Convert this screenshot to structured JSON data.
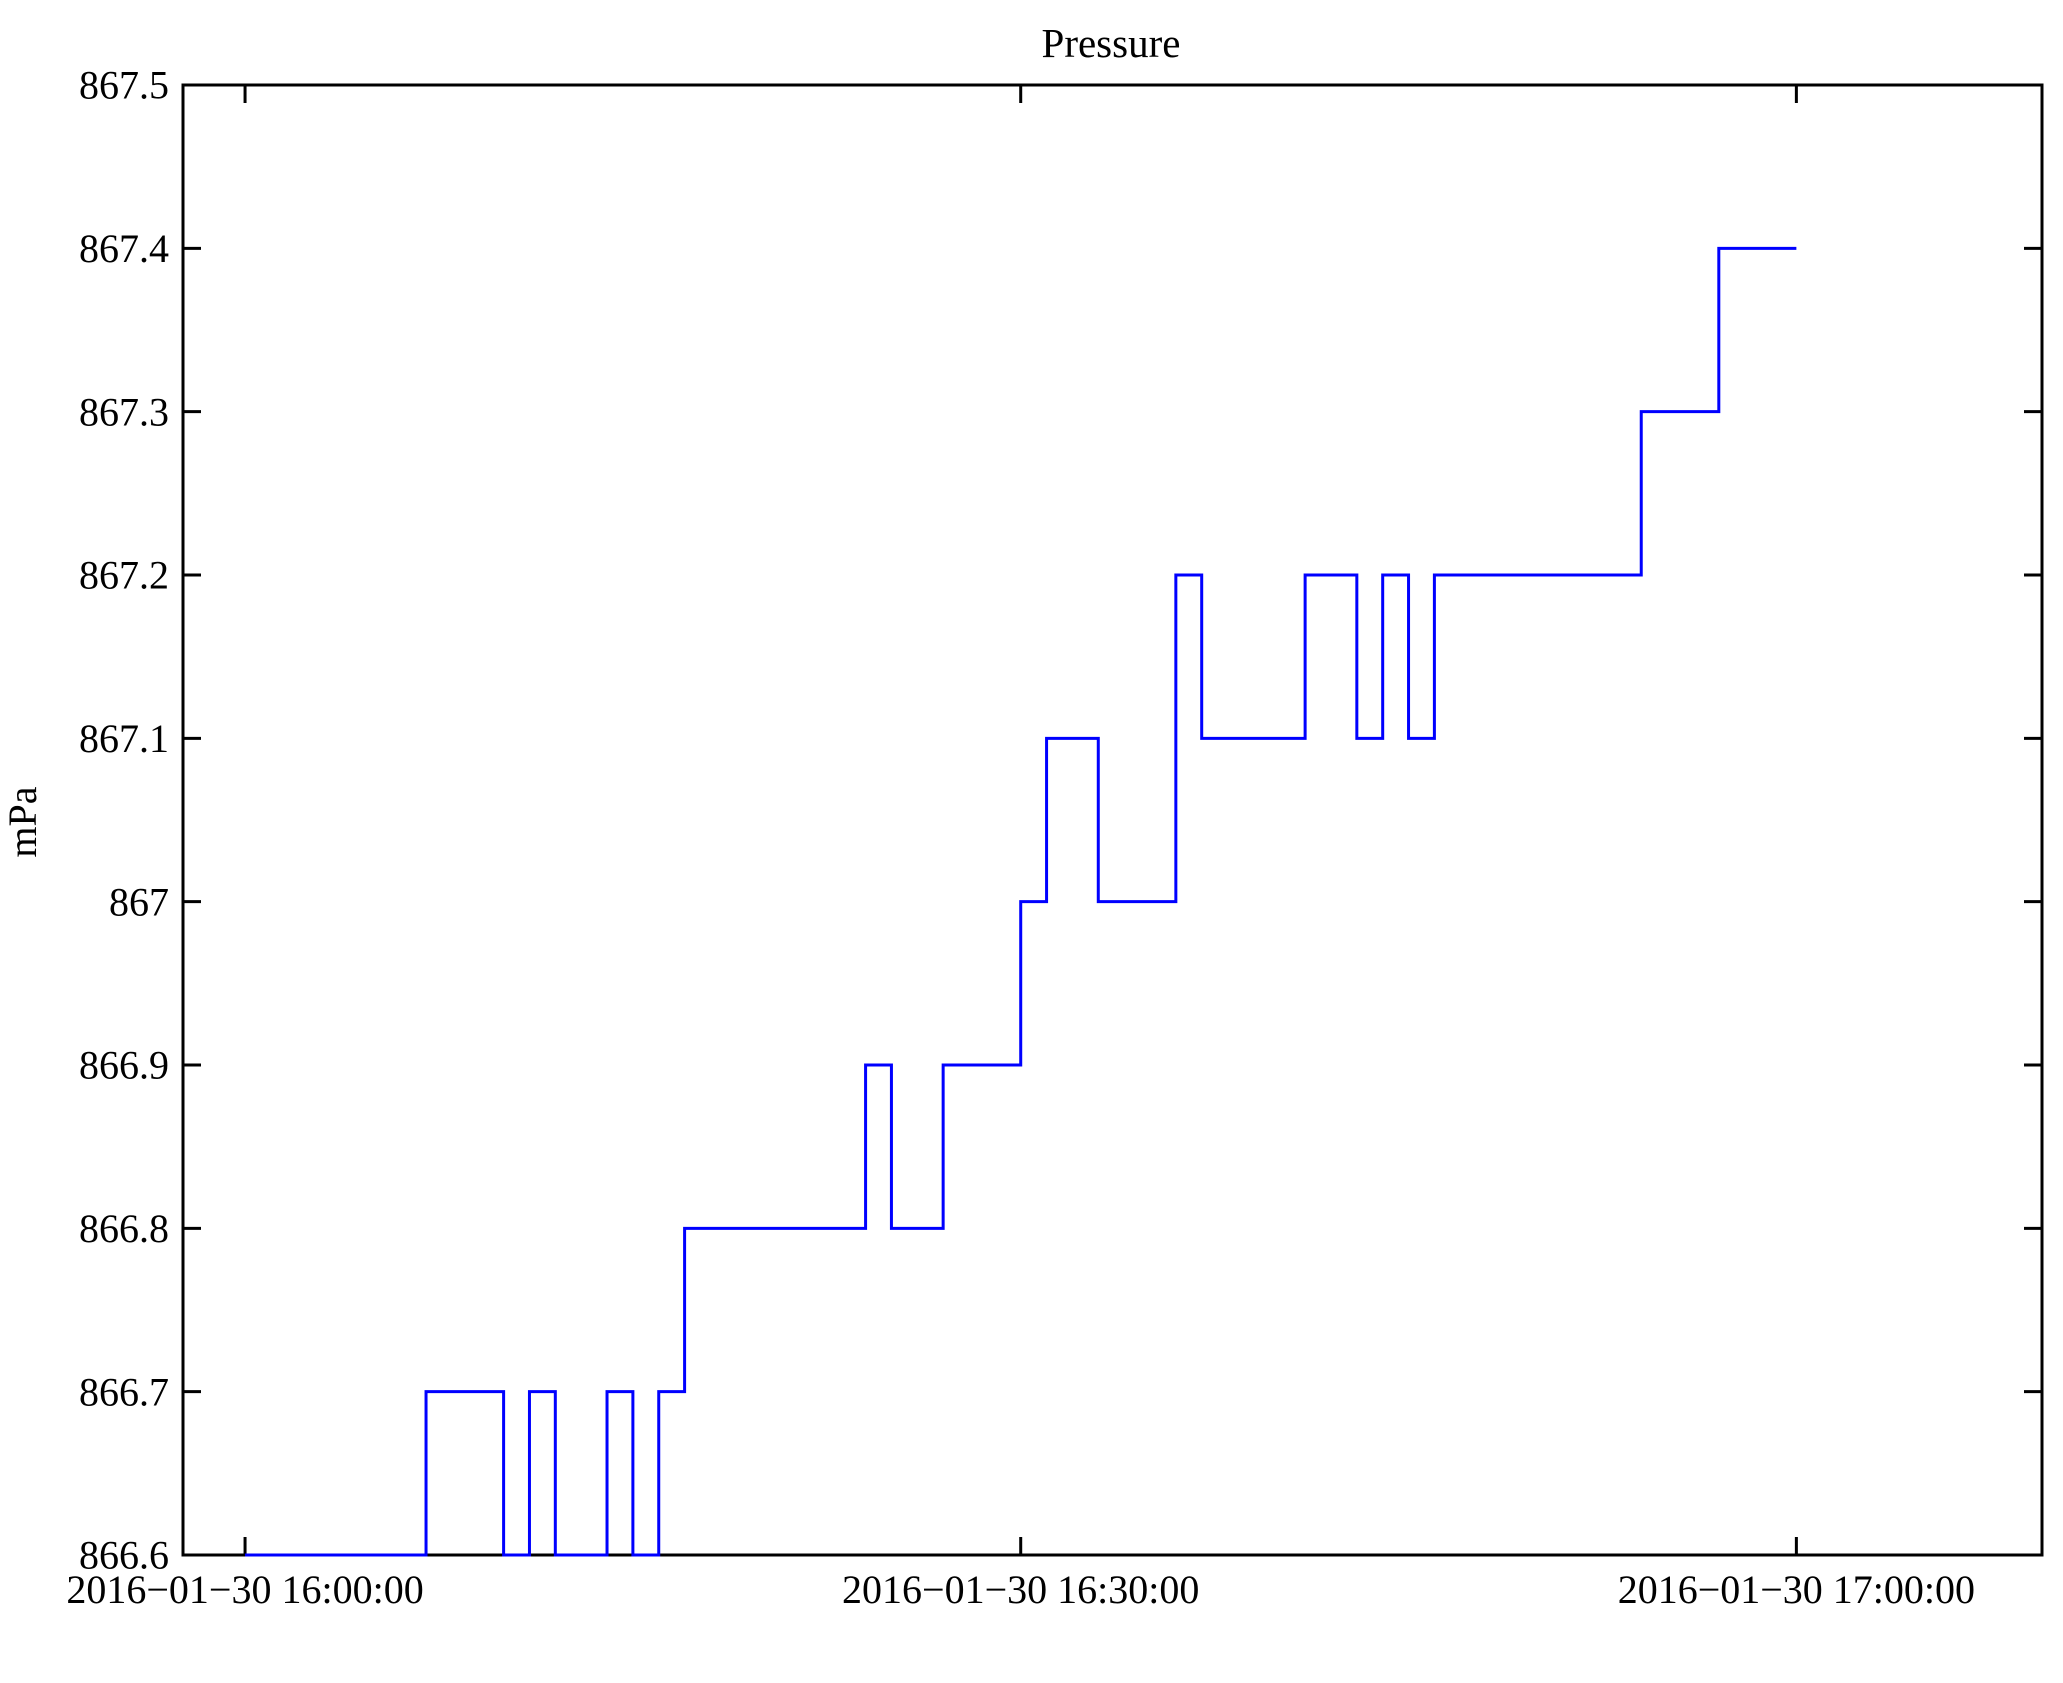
{
  "chart_data": {
    "type": "line",
    "step_mode": "post",
    "title": "Pressure",
    "xlabel": "",
    "ylabel": "mPa",
    "line_color": "#0000ff",
    "axis_color": "#000000",
    "background_color": "#ffffff",
    "grid": false,
    "legend": "none",
    "ylim": [
      866.6,
      867.5
    ],
    "y_ticks": [
      866.6,
      866.7,
      866.8,
      866.9,
      867.0,
      867.1,
      867.2,
      867.3,
      867.4,
      867.5
    ],
    "y_tick_labels": [
      "866.6",
      "866.7",
      "866.8",
      "866.9",
      "867",
      "867.1",
      "867.2",
      "867.3",
      "867.4",
      "867.5"
    ],
    "x_ticks": [
      {
        "minutes_from_start": 0,
        "label": "2016−01−30 16:00:00"
      },
      {
        "minutes_from_start": 30,
        "label": "2016−01−30 16:30:00"
      },
      {
        "minutes_from_start": 60,
        "label": "2016−01−30 17:00:00"
      }
    ],
    "x_start_time": "16:00:00",
    "x_end_time": "17:00:00",
    "xlim_minutes_from_start": [
      -2.4,
      69.5
    ],
    "series": [
      {
        "name": "Pressure",
        "points": [
          [
            "16:00:00",
            866.6
          ],
          [
            "16:07:00",
            866.7
          ],
          [
            "16:10:00",
            866.6
          ],
          [
            "16:11:00",
            866.7
          ],
          [
            "16:12:00",
            866.6
          ],
          [
            "16:14:00",
            866.7
          ],
          [
            "16:15:00",
            866.6
          ],
          [
            "16:16:00",
            866.7
          ],
          [
            "16:17:00",
            866.8
          ],
          [
            "16:24:00",
            866.9
          ],
          [
            "16:25:00",
            866.8
          ],
          [
            "16:27:00",
            866.9
          ],
          [
            "16:30:00",
            867.0
          ],
          [
            "16:31:00",
            867.1
          ],
          [
            "16:33:00",
            867.0
          ],
          [
            "16:36:00",
            867.2
          ],
          [
            "16:37:00",
            867.1
          ],
          [
            "16:41:00",
            867.2
          ],
          [
            "16:43:00",
            867.1
          ],
          [
            "16:44:00",
            867.2
          ],
          [
            "16:45:00",
            867.1
          ],
          [
            "16:46:00",
            867.2
          ],
          [
            "16:54:00",
            867.3
          ],
          [
            "16:57:00",
            867.4
          ],
          [
            "17:00:00",
            867.4
          ]
        ]
      }
    ]
  }
}
